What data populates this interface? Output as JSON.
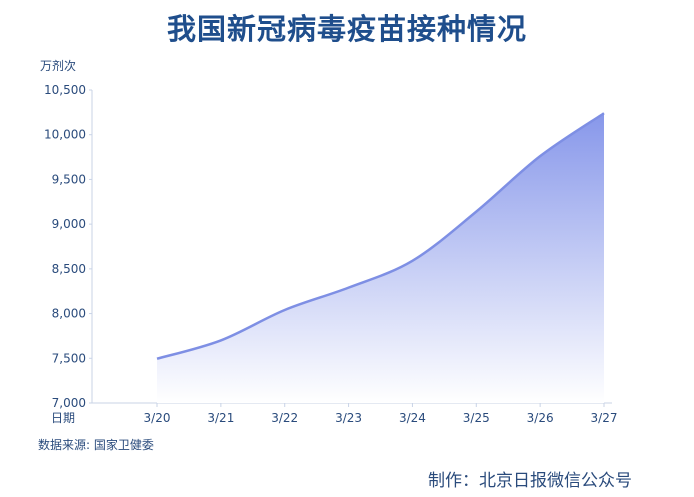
{
  "chart_data": {
    "type": "area",
    "title": "我国新冠病毒疫苗接种情况",
    "ylabel": "万剂次",
    "xlabel": "日期",
    "categories": [
      "3/20",
      "3/21",
      "3/22",
      "3/23",
      "3/24",
      "3/25",
      "3/26",
      "3/27"
    ],
    "values": [
      7495,
      7700,
      8040,
      8290,
      8590,
      9140,
      9760,
      10240
    ],
    "yticks": [
      "7,000",
      "7,500",
      "8,000",
      "8,500",
      "9,000",
      "9,500",
      "10,000",
      "10,500"
    ],
    "ytick_values": [
      7000,
      7500,
      8000,
      8500,
      9000,
      9500,
      10000,
      10500
    ],
    "ylim": [
      7000,
      10500
    ],
    "grid": false,
    "colors": {
      "line": "#7e8fe4",
      "fill_top": "#8797ea",
      "fill_bottom": "#ffffff",
      "axis": "#c8d3e6",
      "text": "#2a4b7c"
    }
  },
  "footer": {
    "source": "数据来源: 国家卫健委",
    "producer": "制作：北京日报微信公众号"
  }
}
